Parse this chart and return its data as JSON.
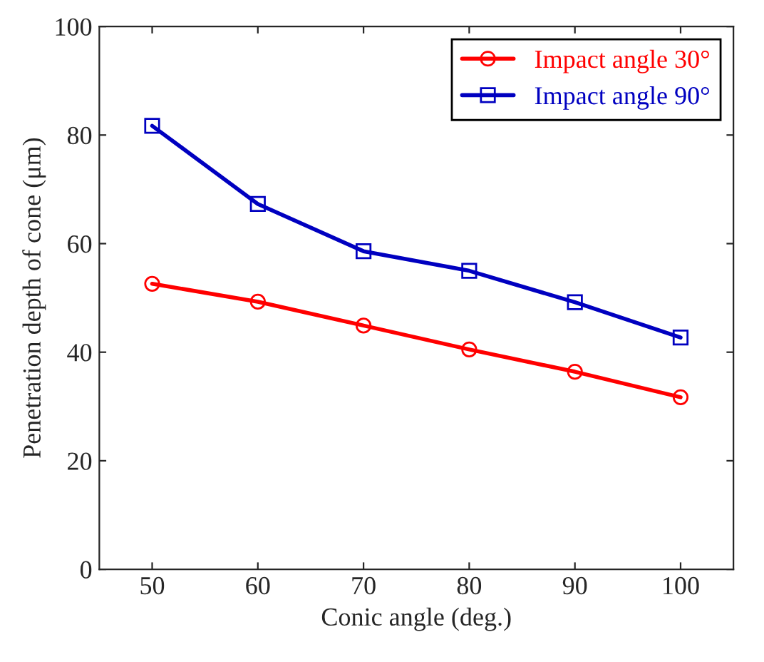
{
  "chart_data": {
    "type": "line",
    "xlabel": "Conic angle (deg.)",
    "ylabel": "Penetration depth of cone (μm)",
    "x": [
      50,
      60,
      70,
      80,
      90,
      100
    ],
    "series": [
      {
        "name": "Impact angle 30°",
        "color": "#ff0000",
        "marker": "circle",
        "values": [
          52.6,
          49.3,
          44.9,
          40.5,
          36.4,
          31.7
        ]
      },
      {
        "name": "Impact angle 90°",
        "color": "#0000c0",
        "marker": "square",
        "values": [
          81.7,
          67.3,
          58.6,
          55.0,
          49.2,
          42.7
        ]
      }
    ],
    "xlim": [
      45,
      105
    ],
    "xticks": [
      50,
      60,
      70,
      80,
      90,
      100
    ],
    "ylim": [
      0,
      100
    ],
    "yticks": [
      0,
      20,
      40,
      60,
      80,
      100
    ],
    "grid": false,
    "legend": "top right",
    "line_style": "solid"
  }
}
